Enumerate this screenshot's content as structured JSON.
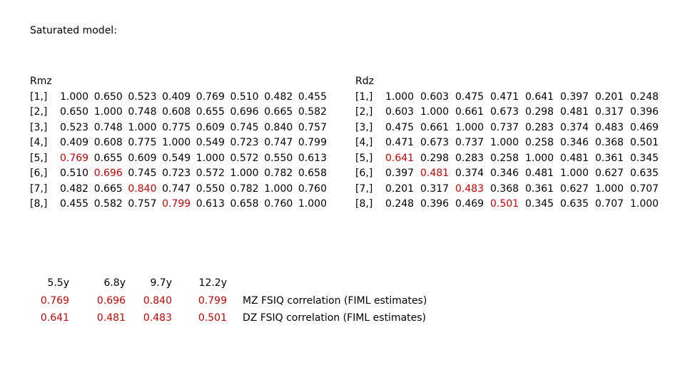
{
  "title": "Saturated model:",
  "matrices": [
    {
      "title": "Rmz",
      "row_labels": [
        "[1,]",
        "[2,]",
        "[3,]",
        "[4,]",
        "[5,]",
        "[6,]",
        "[7,]",
        "[8,]"
      ],
      "rows": [
        [
          "1.000",
          "0.650",
          "0.523",
          "0.409",
          "0.769",
          "0.510",
          "0.482",
          "0.455"
        ],
        [
          "0.650",
          "1.000",
          "0.748",
          "0.608",
          "0.655",
          "0.696",
          "0.665",
          "0.582"
        ],
        [
          "0.523",
          "0.748",
          "1.000",
          "0.775",
          "0.609",
          "0.745",
          "0.840",
          "0.757"
        ],
        [
          "0.409",
          "0.608",
          "0.775",
          "1.000",
          "0.549",
          "0.723",
          "0.747",
          "0.799"
        ],
        [
          "0.769",
          "0.655",
          "0.609",
          "0.549",
          "1.000",
          "0.572",
          "0.550",
          "0.613"
        ],
        [
          "0.510",
          "0.696",
          "0.745",
          "0.723",
          "0.572",
          "1.000",
          "0.782",
          "0.658"
        ],
        [
          "0.482",
          "0.665",
          "0.840",
          "0.747",
          "0.550",
          "0.782",
          "1.000",
          "0.760"
        ],
        [
          "0.455",
          "0.582",
          "0.757",
          "0.799",
          "0.613",
          "0.658",
          "0.760",
          "1.000"
        ]
      ],
      "highlight": [
        [
          4,
          0
        ],
        [
          5,
          1
        ],
        [
          6,
          2
        ],
        [
          7,
          3
        ]
      ]
    },
    {
      "title": "Rdz",
      "row_labels": [
        "[1,]",
        "[2,]",
        "[3,]",
        "[4,]",
        "[5,]",
        "[6,]",
        "[7,]",
        "[8,]"
      ],
      "rows": [
        [
          "1.000",
          "0.603",
          "0.475",
          "0.471",
          "0.641",
          "0.397",
          "0.201",
          "0.248"
        ],
        [
          "0.603",
          "1.000",
          "0.661",
          "0.673",
          "0.298",
          "0.481",
          "0.317",
          "0.396"
        ],
        [
          "0.475",
          "0.661",
          "1.000",
          "0.737",
          "0.283",
          "0.374",
          "0.483",
          "0.469"
        ],
        [
          "0.471",
          "0.673",
          "0.737",
          "1.000",
          "0.258",
          "0.346",
          "0.368",
          "0.501"
        ],
        [
          "0.641",
          "0.298",
          "0.283",
          "0.258",
          "1.000",
          "0.481",
          "0.361",
          "0.345"
        ],
        [
          "0.397",
          "0.481",
          "0.374",
          "0.346",
          "0.481",
          "1.000",
          "0.627",
          "0.635"
        ],
        [
          "0.201",
          "0.317",
          "0.483",
          "0.368",
          "0.361",
          "0.627",
          "1.000",
          "0.707"
        ],
        [
          "0.248",
          "0.396",
          "0.469",
          "0.501",
          "0.345",
          "0.635",
          "0.707",
          "1.000"
        ]
      ],
      "highlight": [
        [
          4,
          0
        ],
        [
          5,
          1
        ],
        [
          6,
          2
        ],
        [
          7,
          3
        ]
      ]
    }
  ],
  "highlight_color": "#cc0000",
  "summary": {
    "ages": [
      "5.5y",
      "6.8y",
      "9.7y",
      "12.2y"
    ],
    "mz": [
      "0.769",
      "0.696",
      "0.840",
      "0.799"
    ],
    "dz": [
      "0.641",
      "0.481",
      "0.483",
      "0.501"
    ],
    "mz_label": "MZ FSIQ correlation (FIML estimates)",
    "dz_label": "DZ FSIQ correlation (FIML estimates)"
  }
}
